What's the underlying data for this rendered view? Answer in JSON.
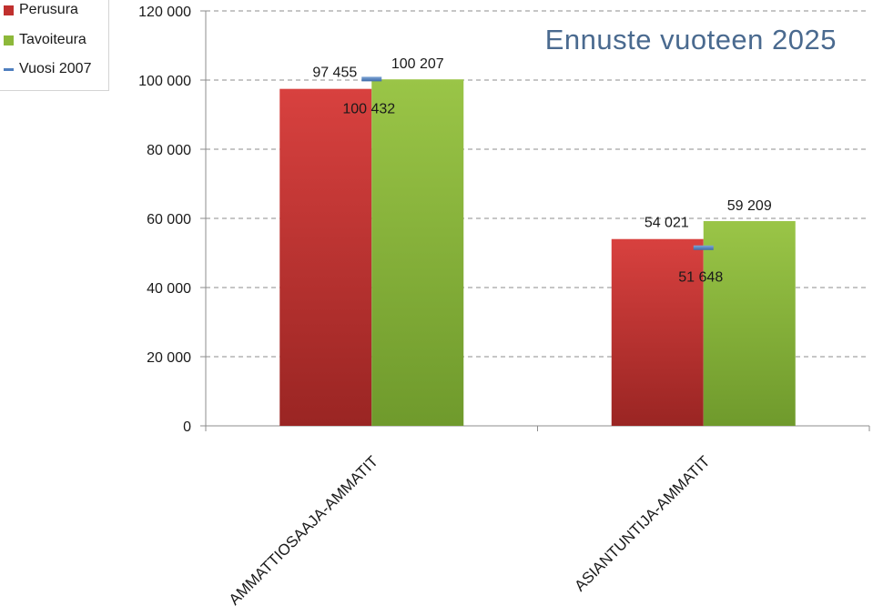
{
  "chart_data": {
    "type": "bar",
    "title": "Ennuste vuoteen 2025",
    "categories": [
      "AMMATTIOSAAJA-AMMATIT",
      "ASIANTUNTIJA-AMMATIT"
    ],
    "series": [
      {
        "name": "Perusura",
        "type": "bar",
        "values": [
          97455,
          54021
        ],
        "labels": [
          "97 455",
          "54 021"
        ],
        "color": "#c0302e"
      },
      {
        "name": "Tavoiteura",
        "type": "bar",
        "values": [
          100207,
          59209
        ],
        "labels": [
          "100 207",
          "59 209"
        ],
        "color": "#8db83a"
      },
      {
        "name": "Vuosi 2007",
        "type": "marker",
        "values": [
          100432,
          51648
        ],
        "labels": [
          "100 432",
          "51 648"
        ],
        "color": "#4f7fbf"
      }
    ],
    "yticks": [
      "0",
      "20 000",
      "40 000",
      "60 000",
      "80 000",
      "100 000",
      "120 000"
    ],
    "ylim": [
      0,
      120000
    ],
    "grid": true,
    "legend_position": "top-left"
  }
}
